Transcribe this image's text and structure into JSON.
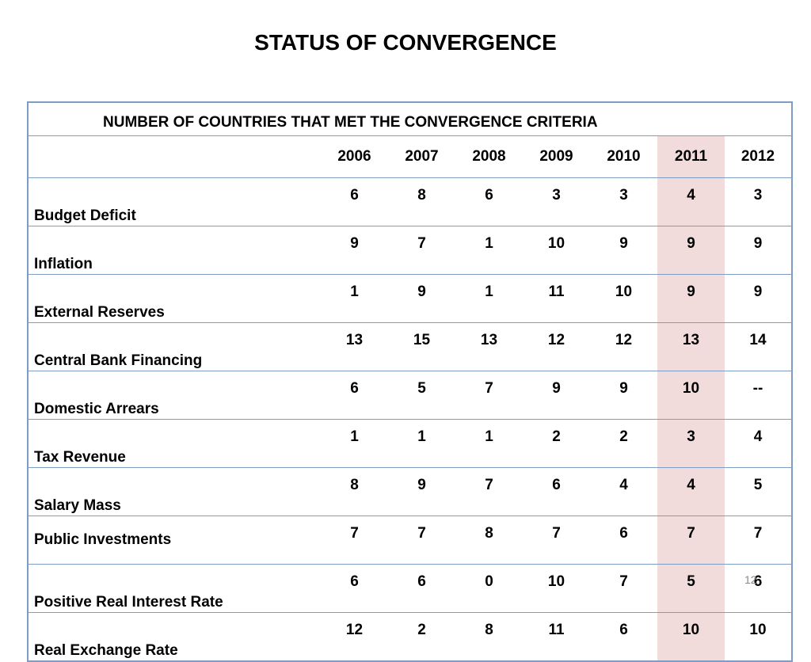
{
  "slide": {
    "title": "STATUS OF CONVERGENCE",
    "page_number": "12"
  },
  "table": {
    "caption": "NUMBER OF COUNTRIES THAT MET THE CONVERGENCE CRITERIA",
    "years": [
      "2006",
      "2007",
      "2008",
      "2009",
      "2010",
      "2011",
      "2012"
    ],
    "highlighted_year": "2011",
    "highlight_color": "#f2dcdb",
    "border_color": "#7f9cc4",
    "rows": [
      {
        "label": "Budget Deficit",
        "values": [
          "6",
          "8",
          "6",
          "3",
          "3",
          "4",
          "3"
        ]
      },
      {
        "label": "Inflation",
        "values": [
          "9",
          "7",
          "1",
          "10",
          "9",
          "9",
          "9"
        ]
      },
      {
        "label": "External Reserves",
        "values": [
          "1",
          "9",
          "1",
          "11",
          "10",
          "9",
          "9"
        ]
      },
      {
        "label": "Central Bank Financing",
        "values": [
          "13",
          "15",
          "13",
          "12",
          "12",
          "13",
          "14"
        ]
      },
      {
        "label": "Domestic Arrears",
        "values": [
          "6",
          "5",
          "7",
          "9",
          "9",
          "10",
          "--"
        ]
      },
      {
        "label": "Tax Revenue",
        "values": [
          "1",
          "1",
          "1",
          "2",
          "2",
          "3",
          "4"
        ]
      },
      {
        "label": "Salary Mass",
        "values": [
          "8",
          "9",
          "7",
          "6",
          "4",
          "4",
          "5"
        ]
      },
      {
        "label": "Public Investments",
        "values": [
          "7",
          "7",
          "8",
          "7",
          "6",
          "7",
          "7"
        ]
      },
      {
        "label": "Positive Real Interest Rate",
        "values": [
          "6",
          "6",
          "0",
          "10",
          "7",
          "5",
          "6"
        ]
      },
      {
        "label": "Real Exchange Rate",
        "values": [
          "12",
          "2",
          "8",
          "11",
          "6",
          "10",
          "10"
        ]
      }
    ]
  }
}
